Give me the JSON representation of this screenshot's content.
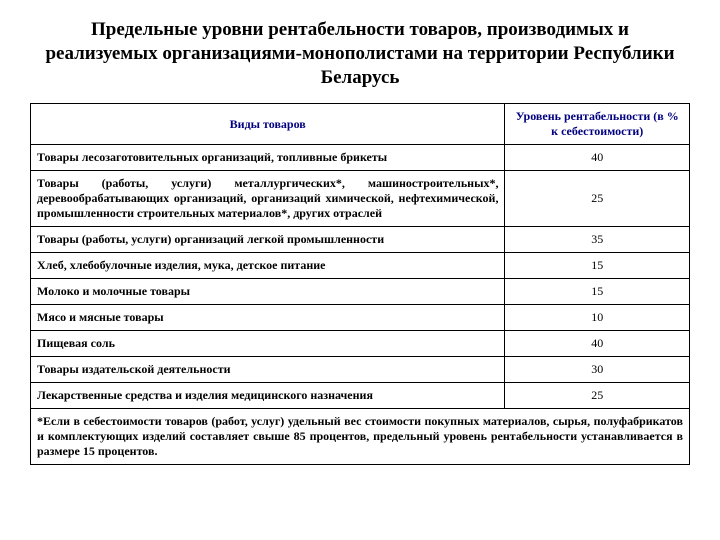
{
  "title": "Предельные уровни рентабельности товаров, производимых и реализуемых организациями-монополистами на территории Республики Беларусь",
  "header": {
    "col_name": "Виды товаров",
    "col_value": "Уровень рентабельности (в % к себестоимости)"
  },
  "rows": [
    {
      "name": "Товары лесозаготовительных организаций, топливные брикеты",
      "value": "40"
    },
    {
      "name": "Товары (работы, услуги) металлургических*, машиностроительных*, деревообрабатывающих организаций, организаций химической, нефтехимической, промышленности строительных материалов*, других отраслей",
      "value": "25"
    },
    {
      "name": "Товары (работы, услуги) организаций легкой промышленности",
      "value": "35"
    },
    {
      "name": "Хлеб, хлебобулочные изделия, мука, детское питание",
      "value": "15"
    },
    {
      "name": "Молоко и молочные товары",
      "value": "15"
    },
    {
      "name": "Мясо и мясные товары",
      "value": "10"
    },
    {
      "name": "Пищевая соль",
      "value": "40"
    },
    {
      "name": "Товары издательской деятельности",
      "value": "30"
    },
    {
      "name": "Лекарственные средства и изделия медицинского назначения",
      "value": "25"
    }
  ],
  "footnote": "*Если в себестоимости товаров (работ, услуг) удельный вес стоимости покупных материалов, сырья, полуфабрикатов и комплектующих изделий составляет свыше 85 процентов, предельный уровень рентабельности устанавливается в размере 15 процентов.",
  "colors": {
    "header_text": "#000080",
    "border": "#000000",
    "text": "#000000",
    "background": "#ffffff"
  }
}
